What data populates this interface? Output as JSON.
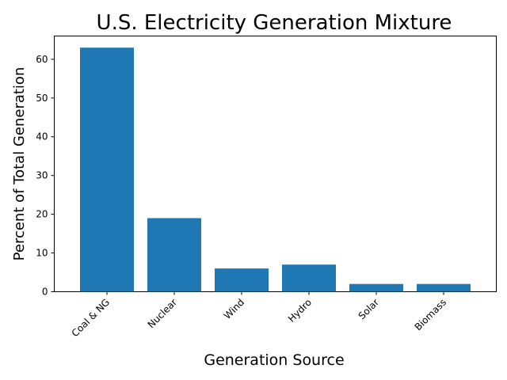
{
  "chart_data": {
    "type": "bar",
    "title": "U.S. Electricity Generation Mixture",
    "xlabel": "Generation Source",
    "ylabel": "Percent of Total Generation",
    "categories": [
      "Coal & NG",
      "Nuclear",
      "Wind",
      "Hydro",
      "Solar",
      "Biomass"
    ],
    "values": [
      63,
      19,
      6,
      7,
      2,
      2
    ],
    "ylim": [
      0,
      66
    ],
    "yticks": [
      0,
      10,
      20,
      30,
      40,
      50,
      60
    ],
    "grid": false,
    "bar_color": "#1f77b4"
  }
}
